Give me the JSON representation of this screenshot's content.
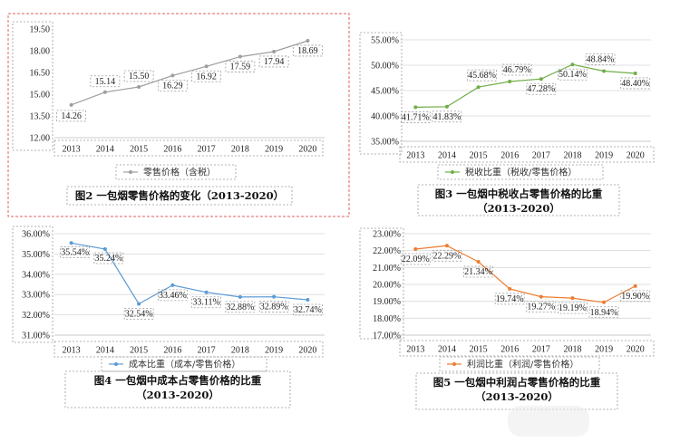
{
  "chart_data": [
    {
      "type": "line",
      "caption": "图2 一包烟零售价格的变化（2013-2020）",
      "categories": [
        "2013",
        "2014",
        "2015",
        "2016",
        "2017",
        "2018",
        "2019",
        "2020"
      ],
      "series": [
        {
          "name": "零售价格（含税）",
          "values": [
            14.26,
            15.14,
            15.5,
            16.29,
            16.92,
            17.59,
            17.94,
            18.69
          ],
          "labels": [
            "14.26",
            "15.14",
            "15.50",
            "16.29",
            "16.92",
            "17.59",
            "17.94",
            "18.69"
          ]
        }
      ],
      "ylim": [
        12.0,
        19.5
      ],
      "yticks": [
        "19.50",
        "18.00",
        "16.50",
        "15.00",
        "13.50",
        "12.00"
      ],
      "color": "#9e9e9e",
      "border": "red-dashed"
    },
    {
      "type": "line",
      "caption": "图3 一包烟中税收占零售价格的比重\n（2013-2020）",
      "categories": [
        "2013",
        "2014",
        "2015",
        "2016",
        "2017",
        "2018",
        "2019",
        "2020"
      ],
      "series": [
        {
          "name": "税收比重（税收/零售价格）",
          "values": [
            41.71,
            41.83,
            45.68,
            46.79,
            47.28,
            50.14,
            48.84,
            48.4
          ],
          "labels": [
            "41.71%",
            "41.83%",
            "45.68%",
            "46.79%",
            "47.28%",
            "50.14%",
            "48.84%",
            "48.40%"
          ]
        }
      ],
      "ylim": [
        35.0,
        55.0
      ],
      "yticks": [
        "55.00%",
        "50.00%",
        "45.00%",
        "40.00%",
        "35.00%"
      ],
      "color": "#70ad47"
    },
    {
      "type": "line",
      "caption": "图4 一包烟中成本占零售价格的比重\n（2013-2020）",
      "categories": [
        "2013",
        "2014",
        "2015",
        "2016",
        "2017",
        "2018",
        "2019",
        "2020"
      ],
      "series": [
        {
          "name": "成本比重（成本/零售价格）",
          "values": [
            35.54,
            35.24,
            32.54,
            33.46,
            33.11,
            32.88,
            32.89,
            32.74
          ],
          "labels": [
            "35.54%",
            "35.24%",
            "32.54%",
            "33.46%",
            "33.11%",
            "32.88%",
            "32.89%",
            "32.74%"
          ]
        }
      ],
      "ylim": [
        31.0,
        36.0
      ],
      "yticks": [
        "36.00%",
        "35.00%",
        "34.00%",
        "33.00%",
        "32.00%",
        "31.00%"
      ],
      "color": "#5b9bd5"
    },
    {
      "type": "line",
      "caption": "图5 一包烟中利润占零售价格的比重\n（2013-2020）",
      "categories": [
        "2013",
        "2014",
        "2015",
        "2016",
        "2017",
        "2018",
        "2019",
        "2020"
      ],
      "series": [
        {
          "name": "利润比重（利润/零售价格）",
          "values": [
            22.09,
            22.29,
            21.34,
            19.74,
            19.27,
            19.19,
            18.94,
            19.9
          ],
          "labels": [
            "22.09%",
            "22.29%",
            "21.34%",
            "19.74%",
            "19.27%",
            "19.19%",
            "18.94%",
            "19.90%"
          ]
        }
      ],
      "ylim": [
        17.0,
        23.0
      ],
      "yticks": [
        "23.00%",
        "22.00%",
        "21.00%",
        "20.00%",
        "19.00%",
        "18.00%",
        "17.00%"
      ],
      "color": "#ed7d31"
    }
  ]
}
